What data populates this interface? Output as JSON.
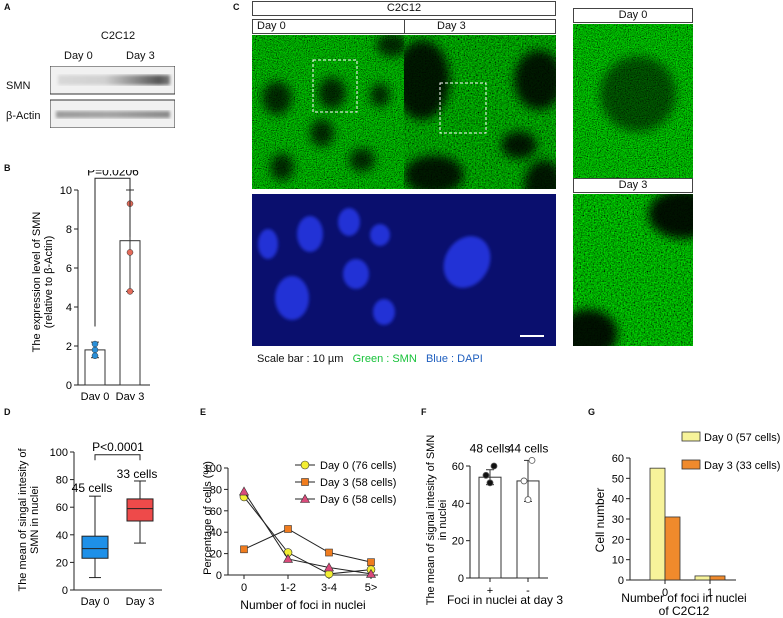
{
  "panels": {
    "A": "A",
    "B": "B",
    "C": "C",
    "D": "D",
    "E": "E",
    "F": "F",
    "G": "G"
  },
  "panel_a": {
    "cell_line": "C2C12",
    "lanes": [
      "Day 0",
      "Day 3"
    ],
    "rows": [
      "SMN",
      "β-Actin"
    ]
  },
  "panel_c": {
    "cell_line": "C2C12",
    "columns": [
      "Day 0",
      "Day 3"
    ],
    "zoom_labels": [
      "Day 0",
      "Day 3"
    ],
    "scale_caption": "Scale bar : 10 µm",
    "green_caption": "Green : SMN",
    "blue_caption": "Blue : DAPI",
    "colors": {
      "green": "#18c23a",
      "blue": "#1f5fbf",
      "smn_stain": "#2f8a1c",
      "dapi_bg": "#0a0f6e",
      "dapi_nuc": "#2233d6"
    }
  },
  "chart_data": [
    {
      "panel": "B",
      "type": "bar",
      "categories": [
        "Day 0",
        "Day 3"
      ],
      "values": [
        1.8,
        7.4
      ],
      "errors": [
        0.4,
        2.6
      ],
      "points": [
        [
          1.5,
          1.8,
          2.1
        ],
        [
          4.8,
          6.8,
          9.3
        ]
      ],
      "point_colors": [
        "#2a8fd8",
        "#e36b5a"
      ],
      "ylabel": "The expression level of SMN\n(relative to β-Actin)",
      "ylim": [
        0,
        10
      ],
      "yticks": [
        0,
        2,
        4,
        6,
        8,
        10
      ],
      "annotation": "P=0.0206"
    },
    {
      "panel": "D",
      "type": "box",
      "categories": [
        "Day 0",
        "Day 3"
      ],
      "boxes": [
        {
          "min": 9,
          "q1": 23,
          "median": 30,
          "q3": 39,
          "max": 68,
          "color": "#1e90e8"
        },
        {
          "min": 34,
          "q1": 50,
          "median": 59,
          "q3": 66,
          "max": 79,
          "color": "#ee4a4a"
        }
      ],
      "counts": [
        "45 cells",
        "33 cells"
      ],
      "ylabel": "The mean of singal intesity of\nSMN  in nuclei",
      "ylim": [
        0,
        100
      ],
      "yticks": [
        0,
        20,
        40,
        60,
        80,
        100
      ],
      "annotation": "P<0.0001"
    },
    {
      "panel": "E",
      "type": "line",
      "categories": [
        "0",
        "1-2",
        "3-4",
        "5>"
      ],
      "series": [
        {
          "name": "Day 0 (76 cells)",
          "values": [
            73,
            21,
            1,
            5
          ],
          "color": "#f3ee33",
          "marker": "circle"
        },
        {
          "name": "Day 3 (58 cells)",
          "values": [
            24,
            43,
            21,
            12
          ],
          "color": "#f07c1e",
          "marker": "square"
        },
        {
          "name": "Day 6 (58 cells)",
          "values": [
            78,
            15,
            7,
            1
          ],
          "color": "#d94a7a",
          "marker": "triangle"
        }
      ],
      "xlabel": "Number of foci in nuclei",
      "ylabel": "Percentage of cells (%)",
      "ylim": [
        0,
        100
      ],
      "yticks": [
        0,
        20,
        40,
        60,
        80,
        100
      ],
      "legend": "top-right"
    },
    {
      "panel": "F",
      "type": "bar",
      "categories": [
        "+",
        "-"
      ],
      "values": [
        54,
        52
      ],
      "errors": [
        4,
        11
      ],
      "points": [
        [
          51,
          55,
          60
        ],
        [
          42,
          52,
          63
        ]
      ],
      "point_fill": [
        "#111",
        "#fff"
      ],
      "counts": [
        "48 cells",
        "44 cells"
      ],
      "xlabel": "Foci in nuclei at day 3",
      "ylabel": "The mean of signal intesity of SMN\nin nuclei",
      "ylim": [
        0,
        60
      ],
      "yticks": [
        0,
        20,
        40,
        60
      ]
    },
    {
      "panel": "G",
      "type": "bar",
      "categories": [
        "0",
        "1"
      ],
      "series": [
        {
          "name": "Day 0 (57 cells)",
          "values": [
            55,
            2
          ],
          "color": "#f7f39a"
        },
        {
          "name": "Day 3 (33 cells)",
          "values": [
            31,
            2
          ],
          "color": "#f08a2c"
        }
      ],
      "xlabel": "Number of foci in nuclei\nof  C2C12",
      "ylabel": "Cell number",
      "ylim": [
        0,
        60
      ],
      "yticks": [
        0,
        10,
        20,
        30,
        40,
        50,
        60
      ],
      "legend": "top-right"
    }
  ]
}
